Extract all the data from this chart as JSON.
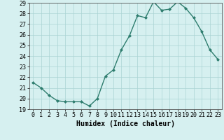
{
  "x": [
    0,
    1,
    2,
    3,
    4,
    5,
    6,
    7,
    8,
    9,
    10,
    11,
    12,
    13,
    14,
    15,
    16,
    17,
    18,
    19,
    20,
    21,
    22,
    23
  ],
  "y": [
    21.5,
    21.0,
    20.3,
    19.8,
    19.7,
    19.7,
    19.7,
    19.3,
    20.0,
    22.1,
    22.7,
    24.6,
    25.9,
    27.8,
    27.6,
    29.1,
    28.3,
    28.4,
    29.1,
    28.5,
    27.6,
    26.3,
    24.6,
    23.7
  ],
  "line_color": "#2e7d6e",
  "marker": "D",
  "marker_size": 2,
  "bg_color": "#d6f0f0",
  "grid_color": "#aad4d4",
  "xlabel": "Humidex (Indice chaleur)",
  "ylim": [
    19,
    29
  ],
  "xlim_min": -0.5,
  "xlim_max": 23.5,
  "yticks": [
    19,
    20,
    21,
    22,
    23,
    24,
    25,
    26,
    27,
    28,
    29
  ],
  "xticks": [
    0,
    1,
    2,
    3,
    4,
    5,
    6,
    7,
    8,
    9,
    10,
    11,
    12,
    13,
    14,
    15,
    16,
    17,
    18,
    19,
    20,
    21,
    22,
    23
  ],
  "xlabel_fontsize": 7,
  "tick_fontsize": 6,
  "line_width": 1.0
}
